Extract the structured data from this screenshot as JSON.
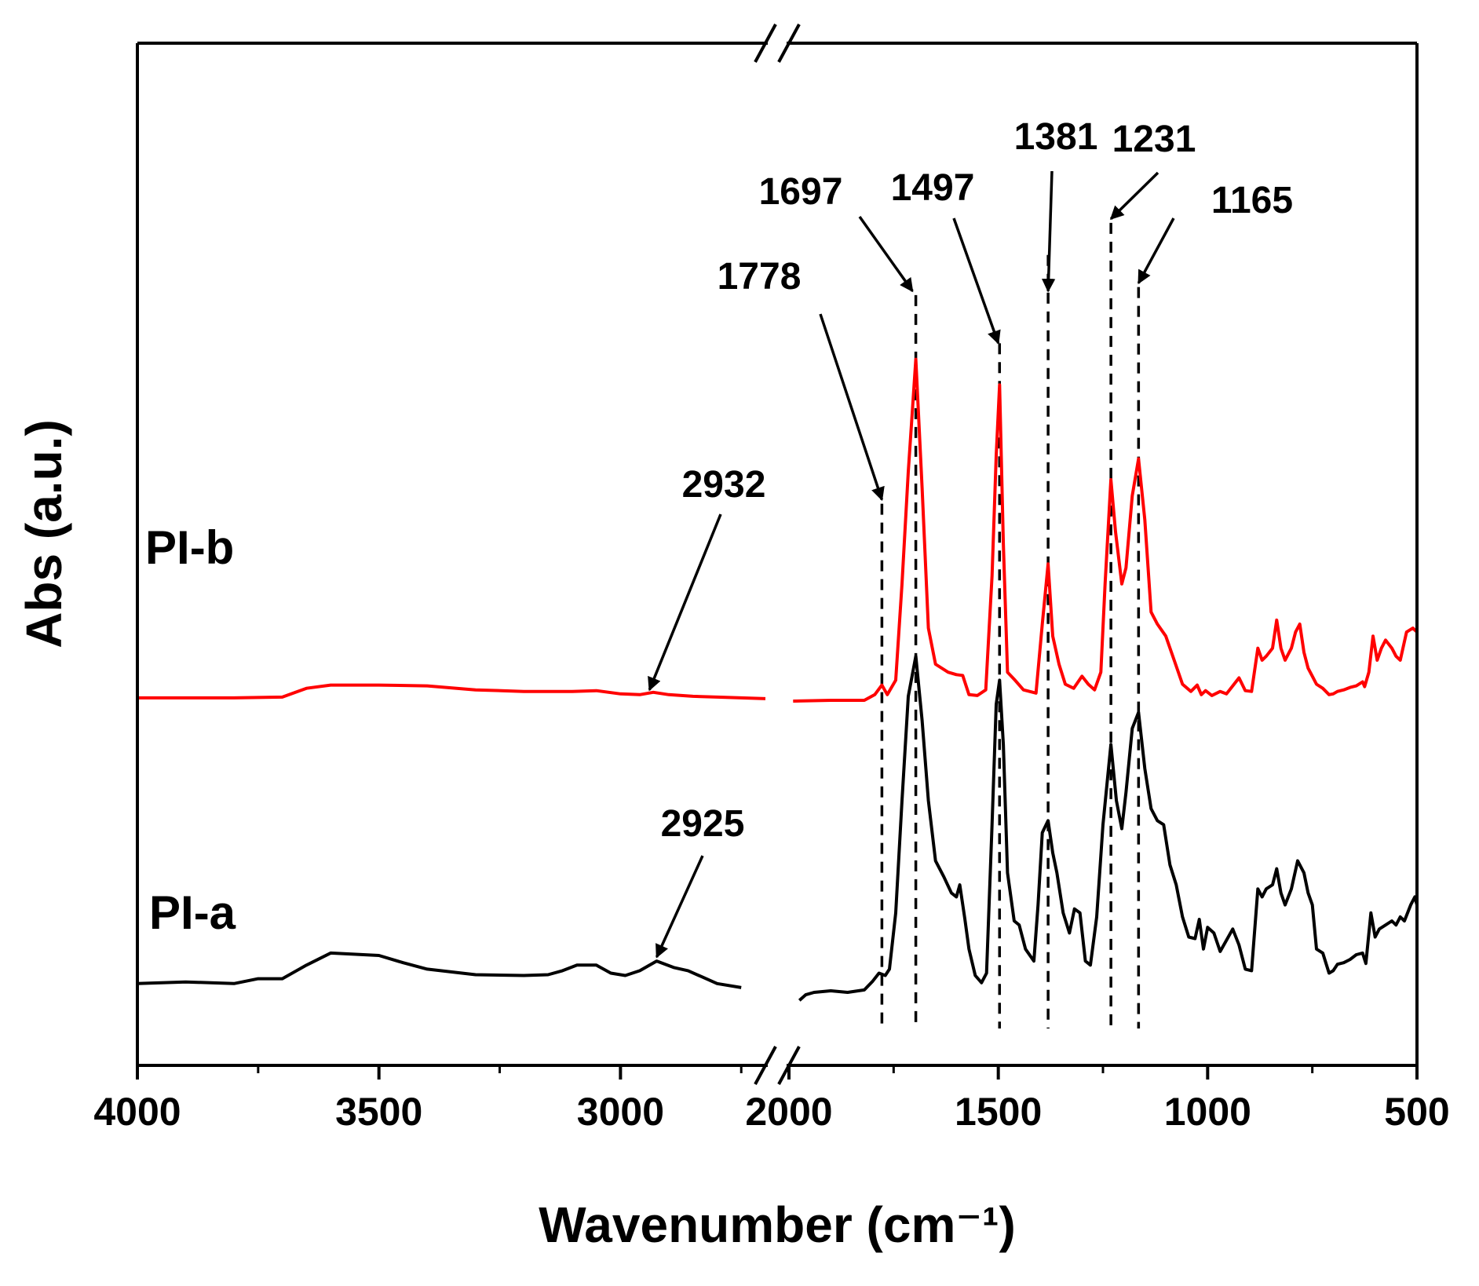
{
  "chart_data": {
    "type": "line",
    "title": "",
    "xlabel": "Wavenumber (cm⁻¹)",
    "ylabel": "Abs (a.u.)",
    "x_reversed": true,
    "x_break": {
      "left_segment": [
        4000,
        2700
      ],
      "right_segment": [
        2000,
        500
      ]
    },
    "ylim": [
      0,
      1
    ],
    "xticks": [
      {
        "value": 4000,
        "label": "4000",
        "segment": 0
      },
      {
        "value": 3500,
        "label": "3500",
        "segment": 0
      },
      {
        "value": 3000,
        "label": "3000",
        "segment": 0
      },
      {
        "value": 2000,
        "label": "2000",
        "segment": 1
      },
      {
        "value": 1500,
        "label": "1500",
        "segment": 1
      },
      {
        "value": 1000,
        "label": "1000",
        "segment": 1
      },
      {
        "value": 500,
        "label": "500",
        "segment": 1
      }
    ],
    "minor_xticks": [
      {
        "value": 3750,
        "segment": 0
      },
      {
        "value": 3250,
        "segment": 0
      },
      {
        "value": 2750,
        "segment": 0
      },
      {
        "value": 1750,
        "segment": 1
      },
      {
        "value": 1250,
        "segment": 1
      },
      {
        "value": 750,
        "segment": 1
      }
    ],
    "series": [
      {
        "name": "PI-b",
        "color": "#ff0000",
        "points": [
          [
            4000,
            0.458
          ],
          [
            3900,
            0.458
          ],
          [
            3800,
            0.458
          ],
          [
            3700,
            0.459
          ],
          [
            3650,
            0.47
          ],
          [
            3600,
            0.474
          ],
          [
            3500,
            0.474
          ],
          [
            3400,
            0.473
          ],
          [
            3300,
            0.468
          ],
          [
            3200,
            0.466
          ],
          [
            3100,
            0.466
          ],
          [
            3050,
            0.467
          ],
          [
            3000,
            0.463
          ],
          [
            2960,
            0.462
          ],
          [
            2932,
            0.465
          ],
          [
            2900,
            0.462
          ],
          [
            2850,
            0.46
          ],
          [
            2800,
            0.459
          ],
          [
            2700,
            0.457
          ],
          null,
          [
            1990,
            0.454
          ],
          [
            1900,
            0.455
          ],
          [
            1820,
            0.455
          ],
          [
            1795,
            0.462
          ],
          [
            1778,
            0.474
          ],
          [
            1765,
            0.462
          ],
          [
            1745,
            0.48
          ],
          [
            1730,
            0.6
          ],
          [
            1715,
            0.74
          ],
          [
            1697,
            0.88
          ],
          [
            1682,
            0.72
          ],
          [
            1667,
            0.545
          ],
          [
            1650,
            0.5
          ],
          [
            1620,
            0.49
          ],
          [
            1600,
            0.487
          ],
          [
            1585,
            0.486
          ],
          [
            1570,
            0.462
          ],
          [
            1550,
            0.461
          ],
          [
            1530,
            0.468
          ],
          [
            1515,
            0.61
          ],
          [
            1505,
            0.76
          ],
          [
            1497,
            0.848
          ],
          [
            1488,
            0.65
          ],
          [
            1478,
            0.49
          ],
          [
            1460,
            0.48
          ],
          [
            1440,
            0.468
          ],
          [
            1410,
            0.464
          ],
          [
            1395,
            0.55
          ],
          [
            1381,
            0.625
          ],
          [
            1370,
            0.535
          ],
          [
            1355,
            0.5
          ],
          [
            1340,
            0.475
          ],
          [
            1320,
            0.47
          ],
          [
            1300,
            0.485
          ],
          [
            1285,
            0.475
          ],
          [
            1270,
            0.468
          ],
          [
            1255,
            0.49
          ],
          [
            1245,
            0.6
          ],
          [
            1231,
            0.73
          ],
          [
            1220,
            0.665
          ],
          [
            1205,
            0.6
          ],
          [
            1195,
            0.62
          ],
          [
            1180,
            0.71
          ],
          [
            1165,
            0.756
          ],
          [
            1150,
            0.68
          ],
          [
            1135,
            0.565
          ],
          [
            1120,
            0.55
          ],
          [
            1100,
            0.535
          ],
          [
            1080,
            0.505
          ],
          [
            1060,
            0.475
          ],
          [
            1040,
            0.466
          ],
          [
            1025,
            0.474
          ],
          [
            1015,
            0.462
          ],
          [
            1005,
            0.467
          ],
          [
            990,
            0.461
          ],
          [
            970,
            0.466
          ],
          [
            955,
            0.463
          ],
          [
            940,
            0.473
          ],
          [
            925,
            0.483
          ],
          [
            910,
            0.467
          ],
          [
            895,
            0.466
          ],
          [
            880,
            0.52
          ],
          [
            870,
            0.505
          ],
          [
            860,
            0.51
          ],
          [
            845,
            0.52
          ],
          [
            835,
            0.555
          ],
          [
            825,
            0.52
          ],
          [
            815,
            0.505
          ],
          [
            800,
            0.52
          ],
          [
            790,
            0.54
          ],
          [
            780,
            0.55
          ],
          [
            770,
            0.515
          ],
          [
            760,
            0.495
          ],
          [
            750,
            0.485
          ],
          [
            740,
            0.475
          ],
          [
            725,
            0.47
          ],
          [
            710,
            0.462
          ],
          [
            700,
            0.463
          ],
          [
            690,
            0.466
          ],
          [
            675,
            0.468
          ],
          [
            660,
            0.471
          ],
          [
            645,
            0.473
          ],
          [
            630,
            0.478
          ],
          [
            625,
            0.472
          ],
          [
            615,
            0.49
          ],
          [
            605,
            0.535
          ],
          [
            595,
            0.505
          ],
          [
            585,
            0.52
          ],
          [
            575,
            0.53
          ],
          [
            560,
            0.52
          ],
          [
            550,
            0.51
          ],
          [
            540,
            0.505
          ],
          [
            525,
            0.54
          ],
          [
            510,
            0.545
          ],
          [
            500,
            0.54
          ]
        ]
      },
      {
        "name": "PI-a",
        "color": "#000000",
        "points": [
          [
            4000,
            0.102
          ],
          [
            3900,
            0.104
          ],
          [
            3800,
            0.102
          ],
          [
            3750,
            0.108
          ],
          [
            3700,
            0.108
          ],
          [
            3650,
            0.125
          ],
          [
            3600,
            0.14
          ],
          [
            3500,
            0.137
          ],
          [
            3450,
            0.128
          ],
          [
            3400,
            0.12
          ],
          [
            3300,
            0.113
          ],
          [
            3200,
            0.112
          ],
          [
            3150,
            0.113
          ],
          [
            3120,
            0.118
          ],
          [
            3090,
            0.125
          ],
          [
            3050,
            0.125
          ],
          [
            3020,
            0.115
          ],
          [
            2990,
            0.112
          ],
          [
            2960,
            0.118
          ],
          [
            2925,
            0.13
          ],
          [
            2890,
            0.122
          ],
          [
            2860,
            0.118
          ],
          [
            2830,
            0.11
          ],
          [
            2800,
            0.102
          ],
          [
            2750,
            0.097
          ],
          null,
          [
            1975,
            0.081
          ],
          [
            1960,
            0.088
          ],
          [
            1940,
            0.091
          ],
          [
            1900,
            0.093
          ],
          [
            1860,
            0.091
          ],
          [
            1820,
            0.094
          ],
          [
            1800,
            0.105
          ],
          [
            1785,
            0.115
          ],
          [
            1770,
            0.112
          ],
          [
            1760,
            0.12
          ],
          [
            1745,
            0.19
          ],
          [
            1730,
            0.33
          ],
          [
            1715,
            0.46
          ],
          [
            1697,
            0.51
          ],
          [
            1682,
            0.43
          ],
          [
            1667,
            0.33
          ],
          [
            1650,
            0.255
          ],
          [
            1630,
            0.235
          ],
          [
            1612,
            0.215
          ],
          [
            1600,
            0.21
          ],
          [
            1592,
            0.225
          ],
          [
            1580,
            0.183
          ],
          [
            1570,
            0.145
          ],
          [
            1555,
            0.112
          ],
          [
            1540,
            0.103
          ],
          [
            1528,
            0.115
          ],
          [
            1515,
            0.3
          ],
          [
            1505,
            0.45
          ],
          [
            1497,
            0.48
          ],
          [
            1488,
            0.4
          ],
          [
            1478,
            0.24
          ],
          [
            1462,
            0.18
          ],
          [
            1450,
            0.175
          ],
          [
            1435,
            0.145
          ],
          [
            1415,
            0.13
          ],
          [
            1405,
            0.2
          ],
          [
            1395,
            0.29
          ],
          [
            1381,
            0.305
          ],
          [
            1370,
            0.265
          ],
          [
            1360,
            0.24
          ],
          [
            1345,
            0.19
          ],
          [
            1330,
            0.165
          ],
          [
            1318,
            0.195
          ],
          [
            1305,
            0.19
          ],
          [
            1292,
            0.13
          ],
          [
            1280,
            0.125
          ],
          [
            1265,
            0.185
          ],
          [
            1250,
            0.3
          ],
          [
            1231,
            0.4
          ],
          [
            1218,
            0.33
          ],
          [
            1205,
            0.295
          ],
          [
            1195,
            0.34
          ],
          [
            1180,
            0.42
          ],
          [
            1165,
            0.44
          ],
          [
            1150,
            0.37
          ],
          [
            1135,
            0.32
          ],
          [
            1120,
            0.305
          ],
          [
            1105,
            0.3
          ],
          [
            1090,
            0.25
          ],
          [
            1075,
            0.225
          ],
          [
            1060,
            0.185
          ],
          [
            1045,
            0.16
          ],
          [
            1030,
            0.158
          ],
          [
            1020,
            0.182
          ],
          [
            1010,
            0.145
          ],
          [
            1000,
            0.172
          ],
          [
            985,
            0.165
          ],
          [
            970,
            0.142
          ],
          [
            955,
            0.156
          ],
          [
            940,
            0.17
          ],
          [
            925,
            0.15
          ],
          [
            910,
            0.12
          ],
          [
            895,
            0.118
          ],
          [
            880,
            0.22
          ],
          [
            870,
            0.21
          ],
          [
            860,
            0.22
          ],
          [
            845,
            0.225
          ],
          [
            835,
            0.245
          ],
          [
            825,
            0.215
          ],
          [
            815,
            0.2
          ],
          [
            800,
            0.22
          ],
          [
            785,
            0.255
          ],
          [
            770,
            0.24
          ],
          [
            760,
            0.215
          ],
          [
            750,
            0.2
          ],
          [
            740,
            0.145
          ],
          [
            725,
            0.14
          ],
          [
            710,
            0.115
          ],
          [
            700,
            0.118
          ],
          [
            690,
            0.126
          ],
          [
            675,
            0.128
          ],
          [
            660,
            0.132
          ],
          [
            645,
            0.138
          ],
          [
            630,
            0.14
          ],
          [
            622,
            0.127
          ],
          [
            610,
            0.19
          ],
          [
            600,
            0.16
          ],
          [
            590,
            0.17
          ],
          [
            575,
            0.175
          ],
          [
            560,
            0.18
          ],
          [
            550,
            0.175
          ],
          [
            540,
            0.185
          ],
          [
            530,
            0.18
          ],
          [
            515,
            0.2
          ],
          [
            505,
            0.21
          ],
          [
            500,
            0.2
          ]
        ]
      }
    ],
    "series_labels": [
      {
        "text": "PI-b",
        "series": "PI-b"
      },
      {
        "text": "PI-a",
        "series": "PI-a"
      }
    ],
    "reference_lines": [
      {
        "label": "1778",
        "x": 1778,
        "y_top": 0.7
      },
      {
        "label": "1697",
        "x": 1697,
        "y_top": 0.96
      },
      {
        "label": "1497",
        "x": 1497,
        "y_top": 0.9
      },
      {
        "label": "1381",
        "x": 1381,
        "y_top": 1.01
      },
      {
        "label": "1231",
        "x": 1231,
        "y_top": 1.05
      },
      {
        "label": "1165",
        "x": 1165,
        "y_top": 0.97
      }
    ],
    "annotations": [
      {
        "label": "1778",
        "target_x": 1778,
        "target_y": 0.705
      },
      {
        "label": "1697",
        "target_x": 1705,
        "target_y": 0.965
      },
      {
        "label": "1497",
        "target_x": 1500,
        "target_y": 0.9
      },
      {
        "label": "1381",
        "target_x": 1381,
        "target_y": 0.965
      },
      {
        "label": "1231",
        "target_x": 1231,
        "target_y": 1.055
      },
      {
        "label": "1165",
        "target_x": 1165,
        "target_y": 0.975
      },
      {
        "label": "2932",
        "target_x": 2940,
        "target_y": 0.468
      },
      {
        "label": "2925",
        "target_x": 2925,
        "target_y": 0.135
      }
    ]
  }
}
